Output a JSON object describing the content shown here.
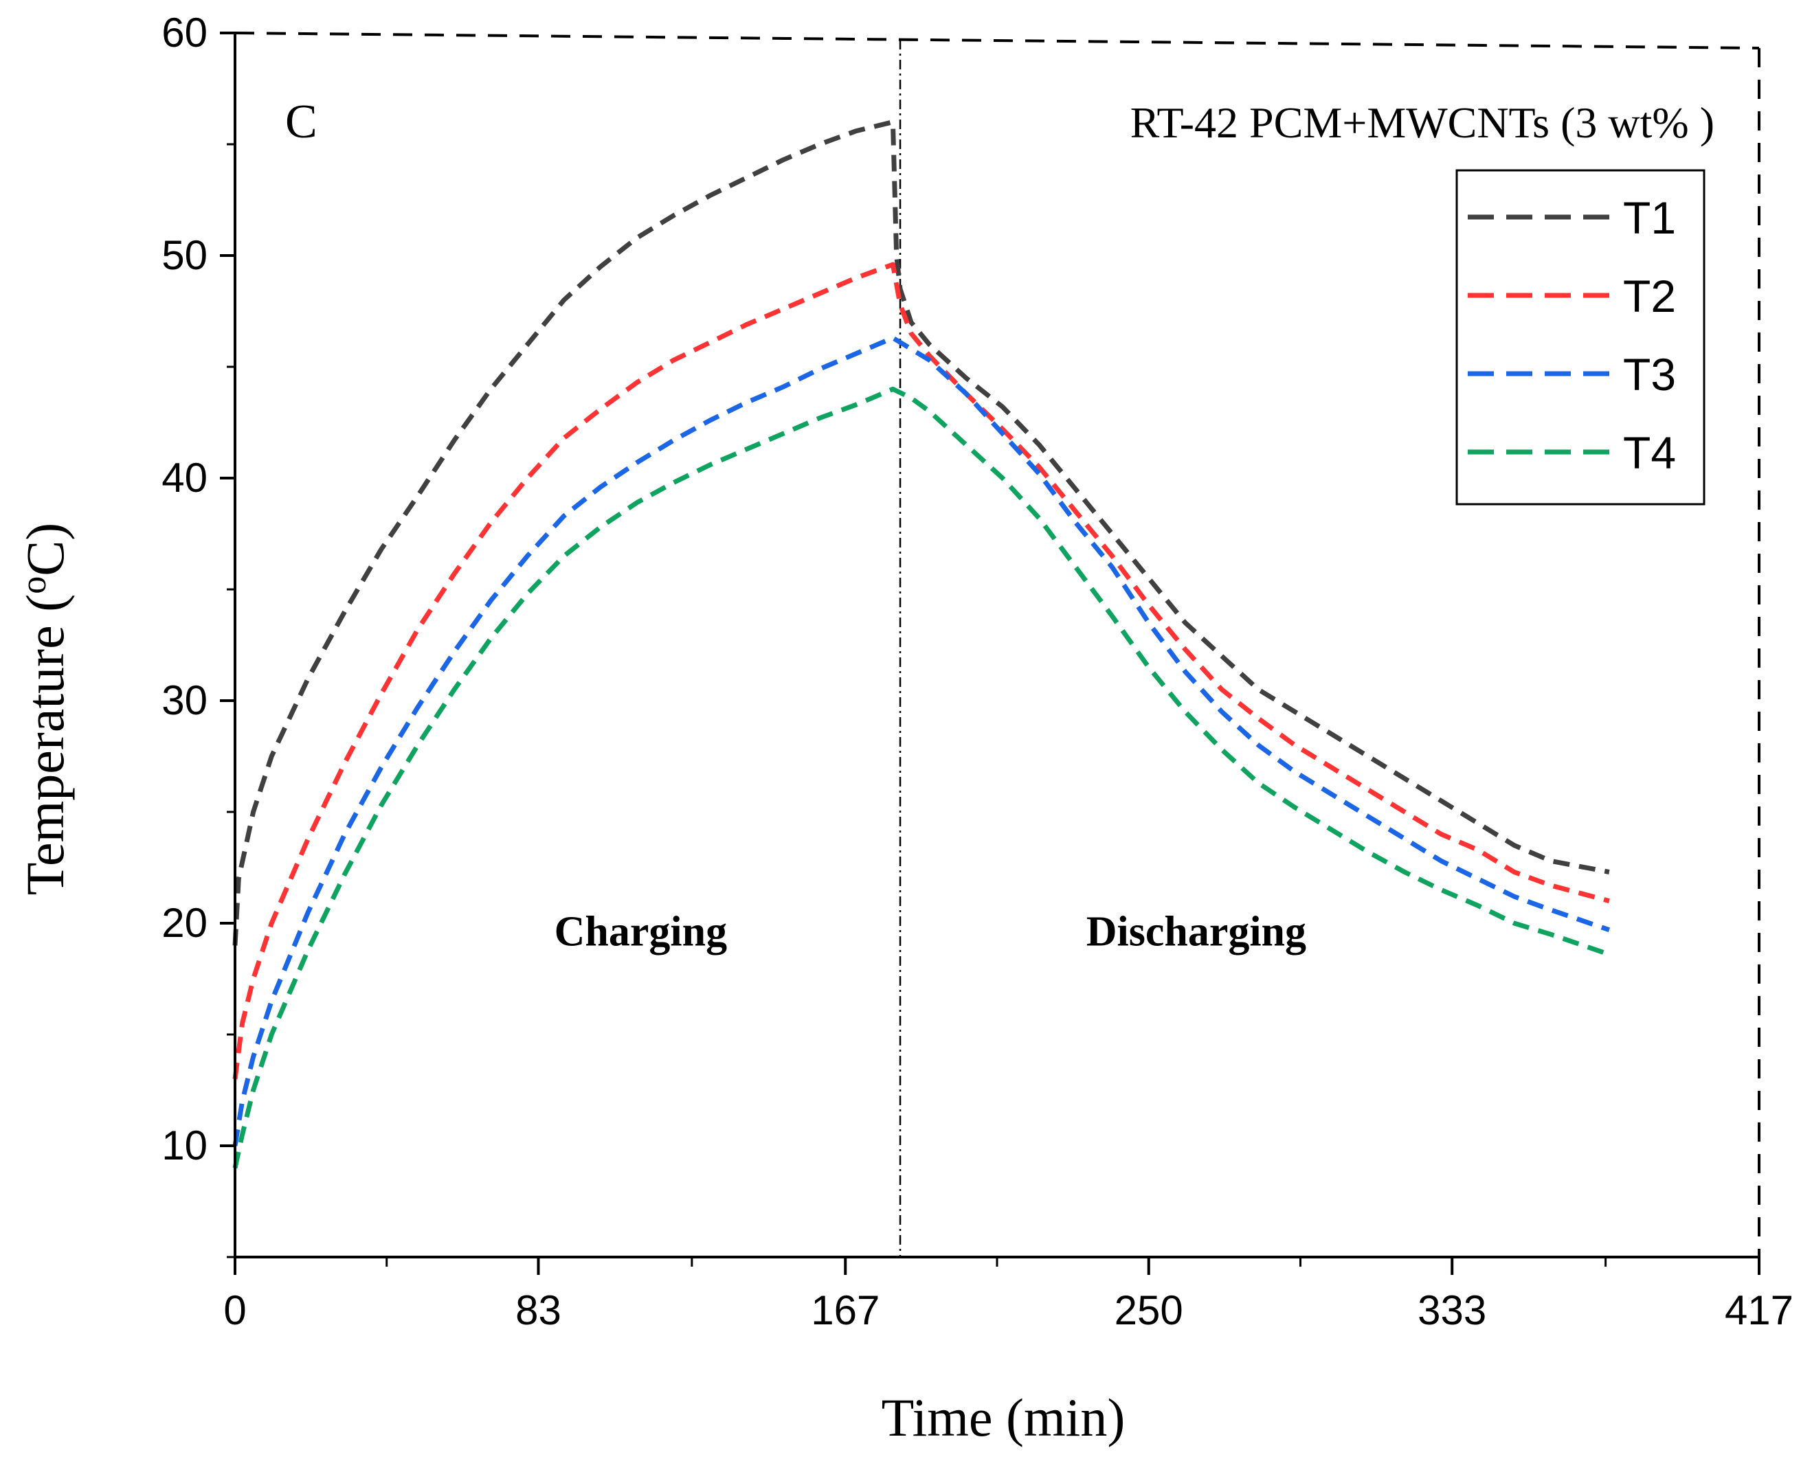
{
  "chart_data": {
    "type": "line",
    "panel_label": "C",
    "subtitle": "RT-42 PCM+MWCNTs (3 wt% )",
    "xlabel": "Time (min)",
    "ylabel_main": "Temperature (",
    "ylabel_sup": "o",
    "ylabel_end": "C)",
    "xlim": [
      0,
      417
    ],
    "ylim": [
      5,
      60
    ],
    "x_ticks": [
      0,
      83,
      167,
      250,
      333,
      417
    ],
    "y_ticks": [
      10,
      20,
      30,
      40,
      50,
      60
    ],
    "phase_boundary_x": 182,
    "annotations": [
      {
        "text": "Charging",
        "x": 111,
        "y": 19
      },
      {
        "text": "Discharging",
        "x": 263,
        "y": 19
      }
    ],
    "legend_position": "top-right",
    "series": [
      {
        "name": "T1",
        "color": "#404040",
        "points": [
          [
            0,
            19
          ],
          [
            1,
            22
          ],
          [
            5,
            25
          ],
          [
            10,
            27.5
          ],
          [
            20,
            31
          ],
          [
            30,
            34
          ],
          [
            40,
            36.8
          ],
          [
            50,
            39.2
          ],
          [
            60,
            41.7
          ],
          [
            70,
            44
          ],
          [
            80,
            46
          ],
          [
            90,
            48
          ],
          [
            100,
            49.5
          ],
          [
            110,
            50.8
          ],
          [
            120,
            51.8
          ],
          [
            130,
            52.7
          ],
          [
            140,
            53.5
          ],
          [
            150,
            54.3
          ],
          [
            160,
            55
          ],
          [
            170,
            55.6
          ],
          [
            180,
            56
          ],
          [
            181,
            50
          ],
          [
            182,
            48.5
          ],
          [
            185,
            47
          ],
          [
            190,
            46
          ],
          [
            200,
            44.5
          ],
          [
            210,
            43.2
          ],
          [
            220,
            41.5
          ],
          [
            230,
            39.5
          ],
          [
            240,
            37.5
          ],
          [
            250,
            35.5
          ],
          [
            260,
            33.5
          ],
          [
            270,
            32
          ],
          [
            280,
            30.5
          ],
          [
            290,
            29.5
          ],
          [
            300,
            28.5
          ],
          [
            310,
            27.5
          ],
          [
            320,
            26.5
          ],
          [
            330,
            25.5
          ],
          [
            340,
            24.5
          ],
          [
            350,
            23.5
          ],
          [
            360,
            22.8
          ],
          [
            376,
            22.3
          ]
        ]
      },
      {
        "name": "T2",
        "color": "#ff3333",
        "points": [
          [
            0,
            13
          ],
          [
            2,
            15.5
          ],
          [
            5,
            17.5
          ],
          [
            10,
            20
          ],
          [
            20,
            23.8
          ],
          [
            30,
            27.2
          ],
          [
            40,
            30.3
          ],
          [
            50,
            33.2
          ],
          [
            60,
            35.7
          ],
          [
            70,
            38
          ],
          [
            80,
            40
          ],
          [
            90,
            41.8
          ],
          [
            100,
            43.1
          ],
          [
            110,
            44.3
          ],
          [
            120,
            45.3
          ],
          [
            130,
            46.1
          ],
          [
            140,
            46.9
          ],
          [
            150,
            47.6
          ],
          [
            160,
            48.3
          ],
          [
            170,
            49
          ],
          [
            180,
            49.6
          ],
          [
            182,
            47.8
          ],
          [
            185,
            46.5
          ],
          [
            190,
            45.5
          ],
          [
            200,
            43.8
          ],
          [
            210,
            42.2
          ],
          [
            220,
            40.5
          ],
          [
            230,
            38.5
          ],
          [
            240,
            36.5
          ],
          [
            250,
            34.3
          ],
          [
            260,
            32.3
          ],
          [
            270,
            30.5
          ],
          [
            280,
            29.2
          ],
          [
            290,
            28
          ],
          [
            300,
            27
          ],
          [
            310,
            26
          ],
          [
            320,
            25
          ],
          [
            330,
            24
          ],
          [
            340,
            23.3
          ],
          [
            350,
            22.3
          ],
          [
            360,
            21.7
          ],
          [
            376,
            21
          ]
        ]
      },
      {
        "name": "T3",
        "color": "#1a66e6",
        "points": [
          [
            0,
            10
          ],
          [
            2,
            12
          ],
          [
            5,
            14
          ],
          [
            10,
            16.5
          ],
          [
            20,
            20.5
          ],
          [
            30,
            24
          ],
          [
            40,
            27
          ],
          [
            50,
            29.7
          ],
          [
            60,
            32.2
          ],
          [
            70,
            34.5
          ],
          [
            80,
            36.5
          ],
          [
            90,
            38.3
          ],
          [
            100,
            39.6
          ],
          [
            110,
            40.7
          ],
          [
            120,
            41.7
          ],
          [
            130,
            42.6
          ],
          [
            140,
            43.4
          ],
          [
            150,
            44.1
          ],
          [
            160,
            44.9
          ],
          [
            170,
            45.6
          ],
          [
            180,
            46.3
          ],
          [
            185,
            45.8
          ],
          [
            190,
            45.3
          ],
          [
            200,
            43.8
          ],
          [
            210,
            42
          ],
          [
            220,
            40.2
          ],
          [
            230,
            38
          ],
          [
            240,
            36
          ],
          [
            250,
            33.5
          ],
          [
            260,
            31.3
          ],
          [
            270,
            29.5
          ],
          [
            280,
            28
          ],
          [
            290,
            26.8
          ],
          [
            300,
            25.8
          ],
          [
            310,
            24.8
          ],
          [
            320,
            23.8
          ],
          [
            330,
            22.8
          ],
          [
            340,
            22
          ],
          [
            350,
            21.2
          ],
          [
            360,
            20.6
          ],
          [
            376,
            19.7
          ]
        ]
      },
      {
        "name": "T4",
        "color": "#0fa360",
        "points": [
          [
            0,
            9
          ],
          [
            2,
            10.5
          ],
          [
            5,
            12.5
          ],
          [
            10,
            15
          ],
          [
            20,
            18.8
          ],
          [
            30,
            22.2
          ],
          [
            40,
            25.3
          ],
          [
            50,
            28
          ],
          [
            60,
            30.5
          ],
          [
            70,
            32.8
          ],
          [
            80,
            34.8
          ],
          [
            90,
            36.5
          ],
          [
            100,
            37.8
          ],
          [
            110,
            38.9
          ],
          [
            120,
            39.8
          ],
          [
            130,
            40.6
          ],
          [
            140,
            41.3
          ],
          [
            150,
            42
          ],
          [
            160,
            42.7
          ],
          [
            170,
            43.3
          ],
          [
            180,
            44
          ],
          [
            185,
            43.6
          ],
          [
            190,
            43
          ],
          [
            200,
            41.5
          ],
          [
            210,
            40
          ],
          [
            220,
            38.2
          ],
          [
            230,
            36
          ],
          [
            240,
            33.8
          ],
          [
            250,
            31.5
          ],
          [
            260,
            29.5
          ],
          [
            270,
            27.8
          ],
          [
            280,
            26.3
          ],
          [
            290,
            25.2
          ],
          [
            300,
            24.2
          ],
          [
            310,
            23.2
          ],
          [
            320,
            22.3
          ],
          [
            330,
            21.5
          ],
          [
            340,
            20.8
          ],
          [
            350,
            20
          ],
          [
            360,
            19.5
          ],
          [
            376,
            18.6
          ]
        ]
      }
    ]
  }
}
